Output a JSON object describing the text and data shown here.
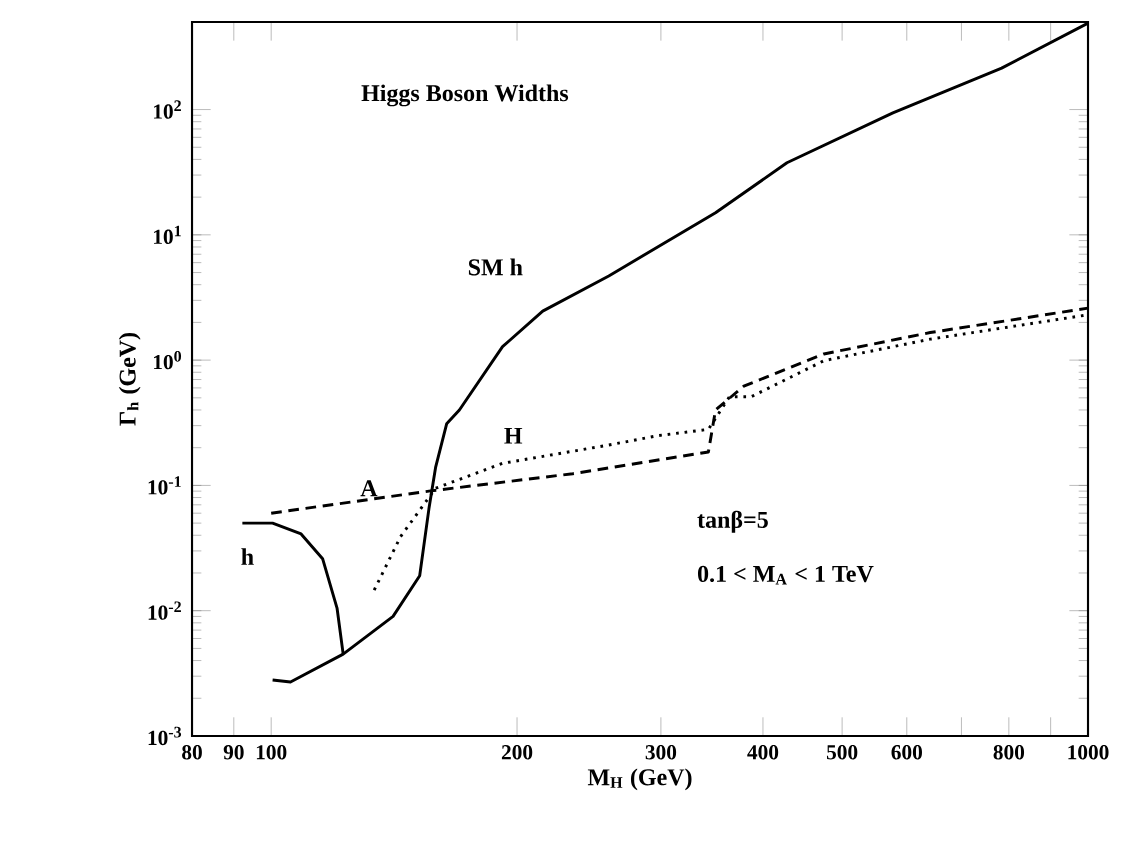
{
  "chart_data": {
    "type": "line",
    "title": "Higgs Boson Widths",
    "xlabel": "M$_{H}$   (GeV)",
    "ylabel": "Γ$_{h}$ (GeV)",
    "log": "xy",
    "grid": false,
    "legend": false,
    "xlim": [
      80,
      1000
    ],
    "ylim": [
      0.001,
      500
    ],
    "xticks": [
      80,
      90,
      100,
      200,
      300,
      400,
      500,
      600,
      {
        "value": 700,
        "label": null
      },
      800,
      {
        "value": 900,
        "label": null
      },
      1000
    ],
    "yticks": [
      {
        "value": 0.001,
        "label": "10$^{-3}$"
      },
      {
        "value": 0.01,
        "label": "10$^{-2}$"
      },
      {
        "value": 0.1,
        "label": "10$^{-1}$"
      },
      {
        "value": 1,
        "label": "10$^{0}$"
      },
      {
        "value": 10,
        "label": "10$^{1}$"
      },
      {
        "value": 100,
        "label": "10$^{2}$"
      }
    ],
    "series": [
      {
        "name": "SM h",
        "color": "#000000",
        "line_style": "solid",
        "x": [
          100.4,
          105.6,
          122.5,
          141,
          152,
          156,
          159,
          164,
          170,
          192,
          215,
          259,
          350,
          428,
          577,
          784,
          1000
        ],
        "values": [
          0.0028,
          0.0027,
          0.0045,
          0.009,
          0.019,
          0.065,
          0.14,
          0.31,
          0.4,
          1.28,
          2.46,
          4.7,
          15,
          37.6,
          94,
          214,
          490
        ]
      },
      {
        "name": "h",
        "color": "#000000",
        "line_style": "solid",
        "x": [
          92.2,
          100.4,
          108.8,
          115.6,
          120.4,
          122.5
        ],
        "values": [
          0.05,
          0.05,
          0.041,
          0.026,
          0.0105,
          0.0045
        ]
      },
      {
        "name": "A",
        "color": "#000000",
        "line_style": "dashed",
        "x": [
          100,
          156,
          234,
          343,
          350,
          379,
          475,
          641,
          1000
        ],
        "values": [
          0.06,
          0.09,
          0.124,
          0.185,
          0.4,
          0.62,
          1.12,
          1.66,
          2.6
        ]
      },
      {
        "name": "H",
        "color": "#000000",
        "line_style": "dotted",
        "x": [
          133.7,
          144,
          159,
          192,
          259,
          298,
          343,
          364,
          387,
          475,
          641,
          1000
        ],
        "values": [
          0.0146,
          0.039,
          0.095,
          0.15,
          0.21,
          0.25,
          0.28,
          0.51,
          0.51,
          0.99,
          1.47,
          2.3
        ]
      }
    ],
    "annotations": [
      "tanβ=5",
      "0.1 < M$_{A}$ < 1 TeV"
    ]
  }
}
